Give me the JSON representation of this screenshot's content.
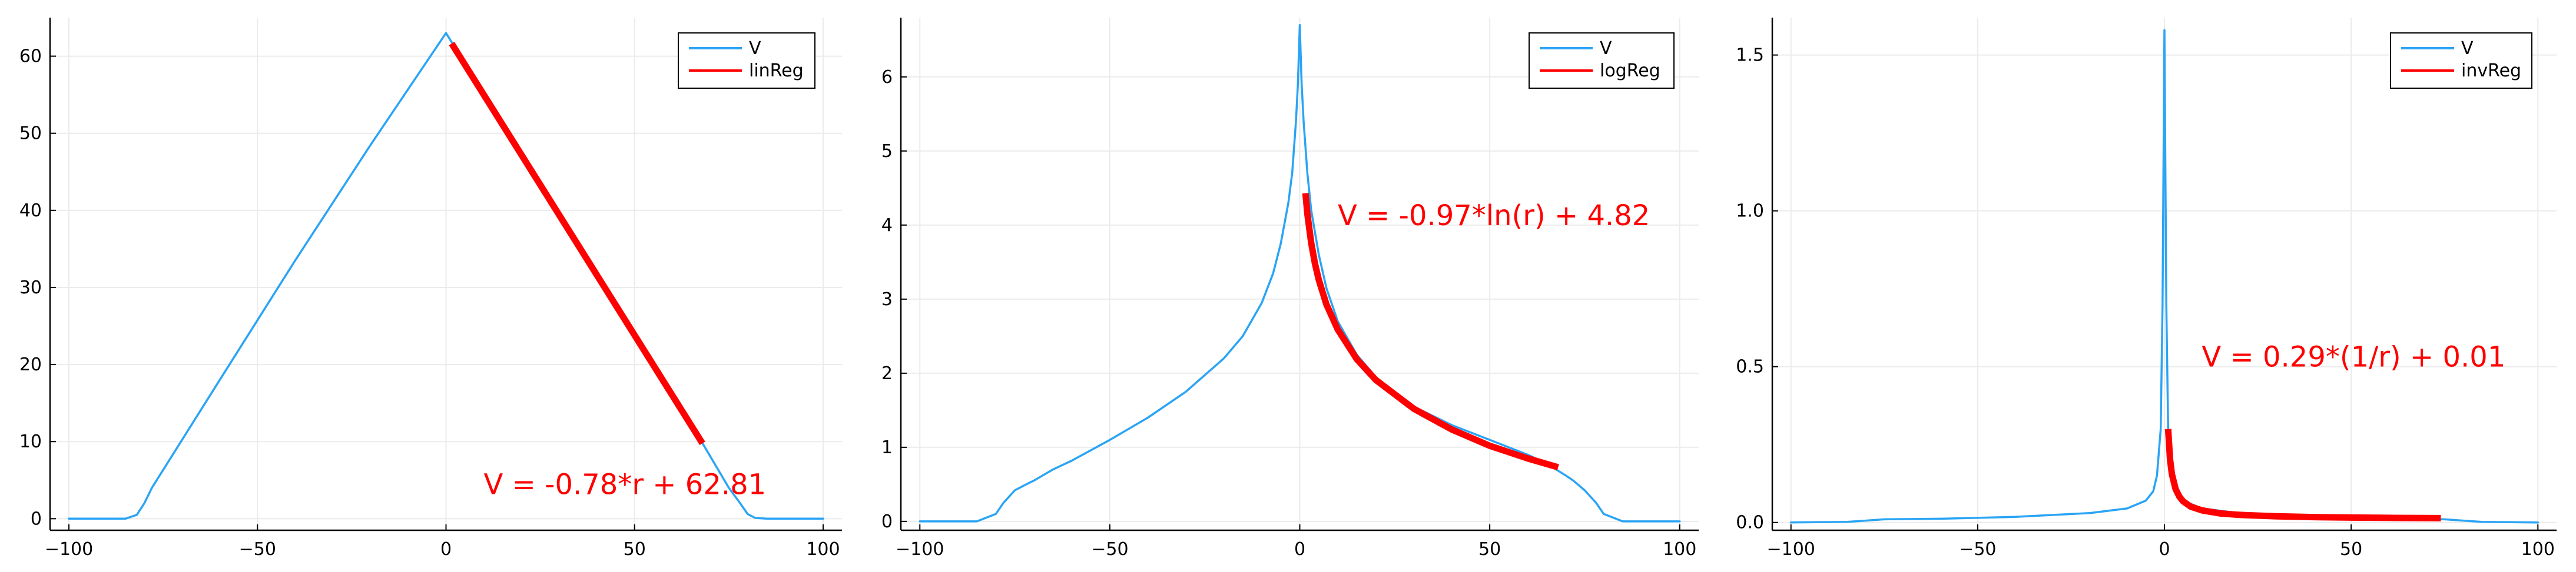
{
  "colors": {
    "data_series": "#2aa4f4",
    "regression": "#ff0000",
    "grid": "#ebebeb",
    "axis": "#000000",
    "background": "#ffffff"
  },
  "chart_data": [
    {
      "type": "line",
      "title": "",
      "xlabel": "",
      "ylabel": "",
      "xlim": [
        -105,
        105
      ],
      "ylim": [
        -1.5,
        65
      ],
      "xticks": [
        -100,
        -50,
        0,
        50,
        100
      ],
      "yticks": [
        0,
        10,
        20,
        30,
        40,
        50,
        60
      ],
      "grid": true,
      "legend_position": "top-right",
      "series": [
        {
          "name": "V",
          "style": "thin",
          "color": "#2aa4f4",
          "x": [
            -100,
            -85,
            -82,
            -80,
            -78,
            -60,
            -40,
            -20,
            0,
            20,
            40,
            60,
            68,
            72,
            75,
            78,
            80,
            82,
            85,
            100
          ],
          "y": [
            0,
            0,
            0.5,
            2,
            4,
            18,
            33.5,
            48.5,
            63,
            47.3,
            31.7,
            16,
            9.8,
            6.5,
            4,
            2,
            0.6,
            0.1,
            0,
            0
          ]
        },
        {
          "name": "linReg",
          "style": "thick",
          "color": "#ff0000",
          "x": [
            1.5,
            68
          ],
          "y": [
            61.64,
            9.77
          ]
        }
      ],
      "annotations": [
        {
          "text": "V = -0.78*r + 62.81",
          "x": 10,
          "y": 3.2,
          "color": "#ff0000"
        }
      ]
    },
    {
      "type": "line",
      "title": "",
      "xlabel": "",
      "ylabel": "",
      "xlim": [
        -105,
        105
      ],
      "ylim": [
        -0.12,
        6.8
      ],
      "xticks": [
        -100,
        -50,
        0,
        50,
        100
      ],
      "yticks": [
        0,
        1,
        2,
        3,
        4,
        5,
        6
      ],
      "grid": true,
      "legend_position": "top-right",
      "series": [
        {
          "name": "V",
          "style": "thin",
          "color": "#2aa4f4",
          "x": [
            -100,
            -85,
            -80,
            -78,
            -75,
            -72,
            -70,
            -65,
            -60,
            -50,
            -40,
            -30,
            -20,
            -15,
            -10,
            -7,
            -5,
            -3,
            -2,
            -1,
            -0.5,
            0,
            0.5,
            1,
            2,
            3,
            5,
            7,
            10,
            15,
            20,
            30,
            40,
            50,
            60,
            65,
            70,
            72,
            75,
            78,
            80,
            85,
            100
          ],
          "y": [
            0,
            0,
            0.1,
            0.25,
            0.42,
            0.5,
            0.55,
            0.7,
            0.82,
            1.1,
            1.4,
            1.75,
            2.2,
            2.5,
            2.95,
            3.35,
            3.75,
            4.3,
            4.7,
            5.4,
            5.9,
            6.7,
            5.9,
            5.4,
            4.7,
            4.2,
            3.6,
            3.15,
            2.7,
            2.25,
            1.95,
            1.55,
            1.3,
            1.1,
            0.9,
            0.78,
            0.62,
            0.55,
            0.42,
            0.25,
            0.1,
            0,
            0
          ]
        },
        {
          "name": "logReg",
          "style": "thick",
          "color": "#ff0000",
          "x": [
            1.5,
            2,
            3,
            4,
            5,
            7,
            10,
            15,
            20,
            30,
            40,
            50,
            60,
            68
          ],
          "y": [
            4.43,
            4.15,
            3.76,
            3.48,
            3.26,
            2.93,
            2.59,
            2.19,
            1.91,
            1.52,
            1.24,
            1.02,
            0.85,
            0.73
          ]
        }
      ],
      "annotations": [
        {
          "text": "V = -0.97*ln(r) + 4.82",
          "x": 10,
          "y": 4.0,
          "color": "#ff0000"
        }
      ]
    },
    {
      "type": "line",
      "title": "",
      "xlabel": "",
      "ylabel": "",
      "xlim": [
        -105,
        105
      ],
      "ylim": [
        -0.025,
        1.62
      ],
      "xticks": [
        -100,
        -50,
        0,
        50,
        100
      ],
      "yticks": [
        0.0,
        0.5,
        1.0,
        1.5
      ],
      "ytick_labels": [
        "0.0",
        "0.5",
        "1.0",
        "1.5"
      ],
      "grid": true,
      "legend_position": "top-right",
      "series": [
        {
          "name": "V",
          "style": "thin",
          "color": "#2aa4f4",
          "x": [
            -100,
            -85,
            -80,
            -75,
            -60,
            -40,
            -20,
            -10,
            -5,
            -3,
            -2,
            -1,
            -0.5,
            0,
            0.5,
            1,
            2,
            3,
            5,
            10,
            20,
            40,
            60,
            75,
            80,
            85,
            100
          ],
          "y": [
            0,
            0.002,
            0.006,
            0.01,
            0.012,
            0.018,
            0.03,
            0.045,
            0.07,
            0.1,
            0.15,
            0.3,
            0.7,
            1.58,
            0.7,
            0.3,
            0.15,
            0.1,
            0.07,
            0.045,
            0.03,
            0.018,
            0.012,
            0.01,
            0.006,
            0.002,
            0
          ]
        },
        {
          "name": "invReg",
          "style": "thick",
          "color": "#ff0000",
          "x": [
            1,
            1.5,
            2,
            3,
            4,
            5,
            7,
            10,
            15,
            20,
            30,
            40,
            50,
            60,
            70,
            74
          ],
          "y": [
            0.3,
            0.203,
            0.155,
            0.107,
            0.083,
            0.068,
            0.051,
            0.039,
            0.029,
            0.0245,
            0.0197,
            0.0173,
            0.0158,
            0.0148,
            0.0141,
            0.0139
          ]
        }
      ],
      "annotations": [
        {
          "text": "V = 0.29*(1/r) + 0.01",
          "x": 10,
          "y": 0.5,
          "color": "#ff0000"
        }
      ]
    }
  ]
}
